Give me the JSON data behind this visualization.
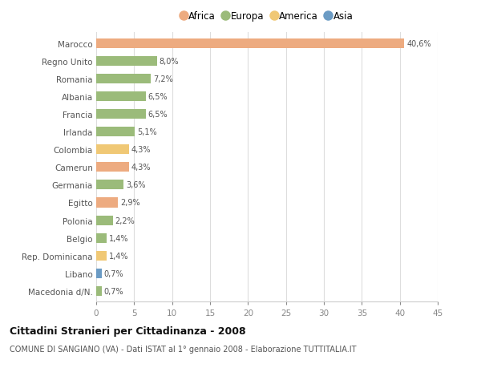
{
  "countries": [
    "Marocco",
    "Regno Unito",
    "Romania",
    "Albania",
    "Francia",
    "Irlanda",
    "Colombia",
    "Camerun",
    "Germania",
    "Egitto",
    "Polonia",
    "Belgio",
    "Rep. Dominicana",
    "Libano",
    "Macedonia d/N."
  ],
  "values": [
    40.6,
    8.0,
    7.2,
    6.5,
    6.5,
    5.1,
    4.3,
    4.3,
    3.6,
    2.9,
    2.2,
    1.4,
    1.4,
    0.7,
    0.7
  ],
  "labels": [
    "40,6%",
    "8,0%",
    "7,2%",
    "6,5%",
    "6,5%",
    "5,1%",
    "4,3%",
    "4,3%",
    "3,6%",
    "2,9%",
    "2,2%",
    "1,4%",
    "1,4%",
    "0,7%",
    "0,7%"
  ],
  "colors": [
    "#EDAB80",
    "#9BBB7A",
    "#9BBB7A",
    "#9BBB7A",
    "#9BBB7A",
    "#9BBB7A",
    "#F0C875",
    "#EDAB80",
    "#9BBB7A",
    "#EDAB80",
    "#9BBB7A",
    "#9BBB7A",
    "#F0C875",
    "#6B9BC4",
    "#9BBB7A"
  ],
  "legend": [
    {
      "label": "Africa",
      "color": "#EDAB80"
    },
    {
      "label": "Europa",
      "color": "#9BBB7A"
    },
    {
      "label": "America",
      "color": "#F0C875"
    },
    {
      "label": "Asia",
      "color": "#6B9BC4"
    }
  ],
  "title": "Cittadini Stranieri per Cittadinanza - 2008",
  "subtitle": "COMUNE DI SANGIANO (VA) - Dati ISTAT al 1° gennaio 2008 - Elaborazione TUTTITALIA.IT",
  "xlim": [
    0,
    45
  ],
  "xticks": [
    0,
    5,
    10,
    15,
    20,
    25,
    30,
    35,
    40,
    45
  ],
  "background_color": "#ffffff",
  "grid_color": "#dddddd",
  "bar_height": 0.55
}
